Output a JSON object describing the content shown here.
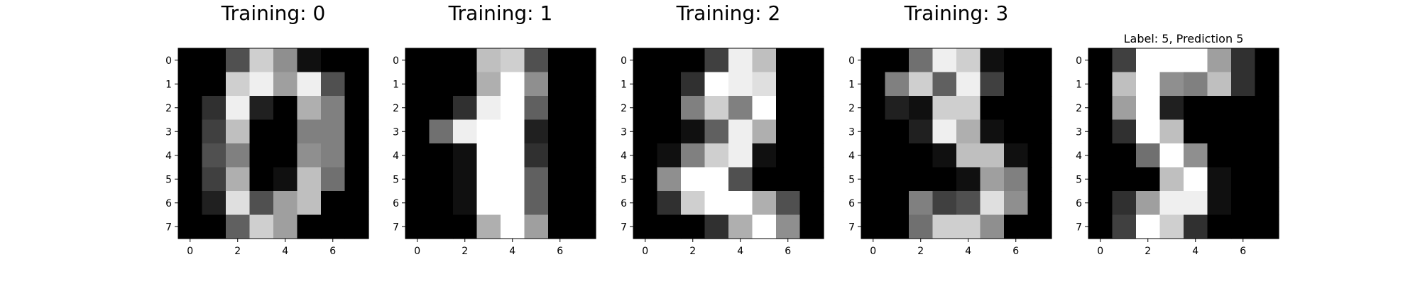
{
  "chart_data": [
    {
      "type": "heatmap",
      "title": "Training: 0",
      "colormap": "gray",
      "vmax": 16,
      "x_ticks": [
        0,
        2,
        4,
        6
      ],
      "y_ticks": [
        0,
        1,
        2,
        3,
        4,
        5,
        6,
        7
      ],
      "values": [
        [
          0,
          0,
          5,
          13,
          9,
          1,
          0,
          0
        ],
        [
          0,
          0,
          13,
          15,
          10,
          15,
          5,
          0
        ],
        [
          0,
          3,
          15,
          2,
          0,
          11,
          8,
          0
        ],
        [
          0,
          4,
          12,
          0,
          0,
          8,
          8,
          0
        ],
        [
          0,
          5,
          8,
          0,
          0,
          9,
          8,
          0
        ],
        [
          0,
          4,
          11,
          0,
          1,
          12,
          7,
          0
        ],
        [
          0,
          2,
          14,
          5,
          10,
          12,
          0,
          0
        ],
        [
          0,
          0,
          6,
          13,
          10,
          0,
          0,
          0
        ]
      ]
    },
    {
      "type": "heatmap",
      "title": "Training: 1",
      "colormap": "gray",
      "vmax": 16,
      "x_ticks": [
        0,
        2,
        4,
        6
      ],
      "y_ticks": [
        0,
        1,
        2,
        3,
        4,
        5,
        6,
        7
      ],
      "values": [
        [
          0,
          0,
          0,
          12,
          13,
          5,
          0,
          0
        ],
        [
          0,
          0,
          0,
          11,
          16,
          9,
          0,
          0
        ],
        [
          0,
          0,
          3,
          15,
          16,
          6,
          0,
          0
        ],
        [
          0,
          7,
          15,
          16,
          16,
          2,
          0,
          0
        ],
        [
          0,
          0,
          1,
          16,
          16,
          3,
          0,
          0
        ],
        [
          0,
          0,
          1,
          16,
          16,
          6,
          0,
          0
        ],
        [
          0,
          0,
          1,
          16,
          16,
          6,
          0,
          0
        ],
        [
          0,
          0,
          0,
          11,
          16,
          10,
          0,
          0
        ]
      ]
    },
    {
      "type": "heatmap",
      "title": "Training: 2",
      "colormap": "gray",
      "vmax": 16,
      "x_ticks": [
        0,
        2,
        4,
        6
      ],
      "y_ticks": [
        0,
        1,
        2,
        3,
        4,
        5,
        6,
        7
      ],
      "values": [
        [
          0,
          0,
          0,
          4,
          15,
          12,
          0,
          0
        ],
        [
          0,
          0,
          3,
          16,
          15,
          14,
          0,
          0
        ],
        [
          0,
          0,
          8,
          13,
          8,
          16,
          0,
          0
        ],
        [
          0,
          0,
          1,
          6,
          15,
          11,
          0,
          0
        ],
        [
          0,
          1,
          8,
          13,
          15,
          1,
          0,
          0
        ],
        [
          0,
          9,
          16,
          16,
          5,
          0,
          0,
          0
        ],
        [
          0,
          3,
          13,
          16,
          16,
          11,
          5,
          0
        ],
        [
          0,
          0,
          0,
          3,
          11,
          16,
          9,
          0
        ]
      ]
    },
    {
      "type": "heatmap",
      "title": "Training: 3",
      "colormap": "gray",
      "vmax": 16,
      "x_ticks": [
        0,
        2,
        4,
        6
      ],
      "y_ticks": [
        0,
        1,
        2,
        3,
        4,
        5,
        6,
        7
      ],
      "values": [
        [
          0,
          0,
          7,
          15,
          13,
          1,
          0,
          0
        ],
        [
          0,
          8,
          13,
          6,
          15,
          4,
          0,
          0
        ],
        [
          0,
          2,
          1,
          13,
          13,
          0,
          0,
          0
        ],
        [
          0,
          0,
          2,
          15,
          11,
          1,
          0,
          0
        ],
        [
          0,
          0,
          0,
          1,
          12,
          12,
          1,
          0
        ],
        [
          0,
          0,
          0,
          0,
          1,
          10,
          8,
          0
        ],
        [
          0,
          0,
          8,
          4,
          5,
          14,
          9,
          0
        ],
        [
          0,
          0,
          7,
          13,
          13,
          9,
          0,
          0
        ]
      ]
    },
    {
      "type": "heatmap",
      "title": "Label: 5, Prediction 5",
      "colormap": "gray",
      "vmax": 16,
      "x_ticks": [
        0,
        2,
        4,
        6
      ],
      "y_ticks": [
        0,
        1,
        2,
        3,
        4,
        5,
        6,
        7
      ],
      "values": [
        [
          0,
          4,
          16,
          16,
          16,
          10,
          3,
          0
        ],
        [
          0,
          12,
          16,
          9,
          8,
          12,
          3,
          0
        ],
        [
          0,
          10,
          16,
          2,
          0,
          0,
          0,
          0
        ],
        [
          0,
          3,
          16,
          12,
          0,
          0,
          0,
          0
        ],
        [
          0,
          0,
          7,
          16,
          9,
          0,
          0,
          0
        ],
        [
          0,
          0,
          0,
          12,
          16,
          1,
          0,
          0
        ],
        [
          0,
          3,
          10,
          15,
          15,
          1,
          0,
          0
        ],
        [
          0,
          4,
          16,
          13,
          3,
          0,
          0,
          0
        ]
      ]
    }
  ]
}
